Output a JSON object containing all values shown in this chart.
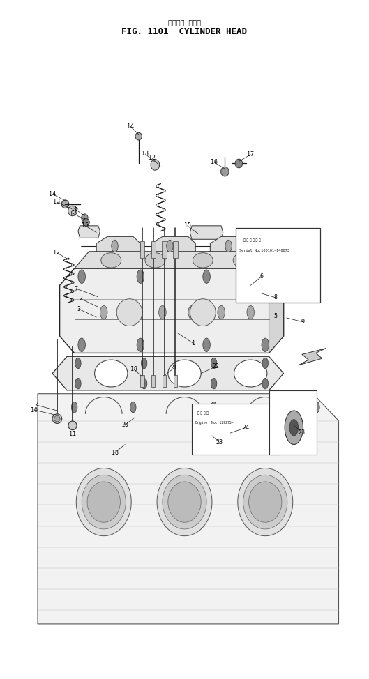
{
  "title_jp": "シリンダ ヘッド",
  "title_en": "FIG. 1101  CYLINDER HEAD",
  "bg_color": "#ffffff",
  "fig_width": 5.29,
  "fig_height": 9.74,
  "serial_note": "Serial No.100101~140073",
  "engine_note": "Engine  No. 129275~"
}
